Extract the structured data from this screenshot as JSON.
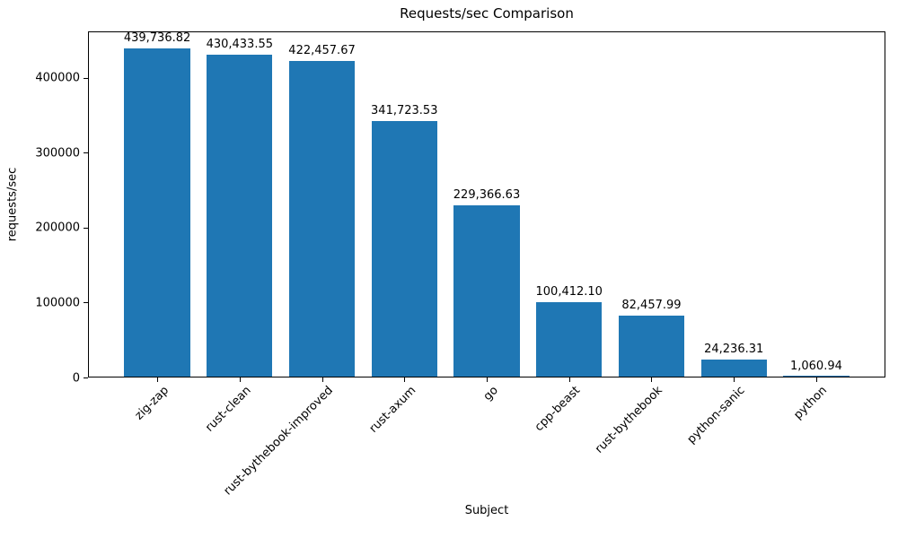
{
  "figure": {
    "title": "Requests/sec Comparison",
    "xlabel": "Subject",
    "ylabel": "requests/sec"
  },
  "chart_data": {
    "type": "bar",
    "title": "Requests/sec Comparison",
    "xlabel": "Subject",
    "ylabel": "requests/sec",
    "categories": [
      "zig-zap",
      "rust-clean",
      "rust-bythebook-improved",
      "rust-axum",
      "go",
      "cpp-beast",
      "rust-bythebook",
      "python-sanic",
      "python"
    ],
    "values": [
      439736.82,
      430433.55,
      422457.67,
      341723.53,
      229366.63,
      100412.1,
      82457.99,
      24236.31,
      1060.94
    ],
    "value_labels": [
      "439,736.82",
      "430,433.55",
      "422,457.67",
      "341,723.53",
      "229,366.63",
      "100,412.10",
      "82,457.99",
      "24,236.31",
      "1,060.94"
    ],
    "yticks": [
      0,
      100000,
      200000,
      300000,
      400000
    ],
    "ytick_labels": [
      "0",
      "100000",
      "200000",
      "300000",
      "400000"
    ],
    "ylim": [
      0,
      462000
    ],
    "bar_color": "#1f77b4",
    "bar_relative_width": 0.8,
    "grid": false,
    "legend_position": "none",
    "xtick_rotation_deg": 45
  }
}
